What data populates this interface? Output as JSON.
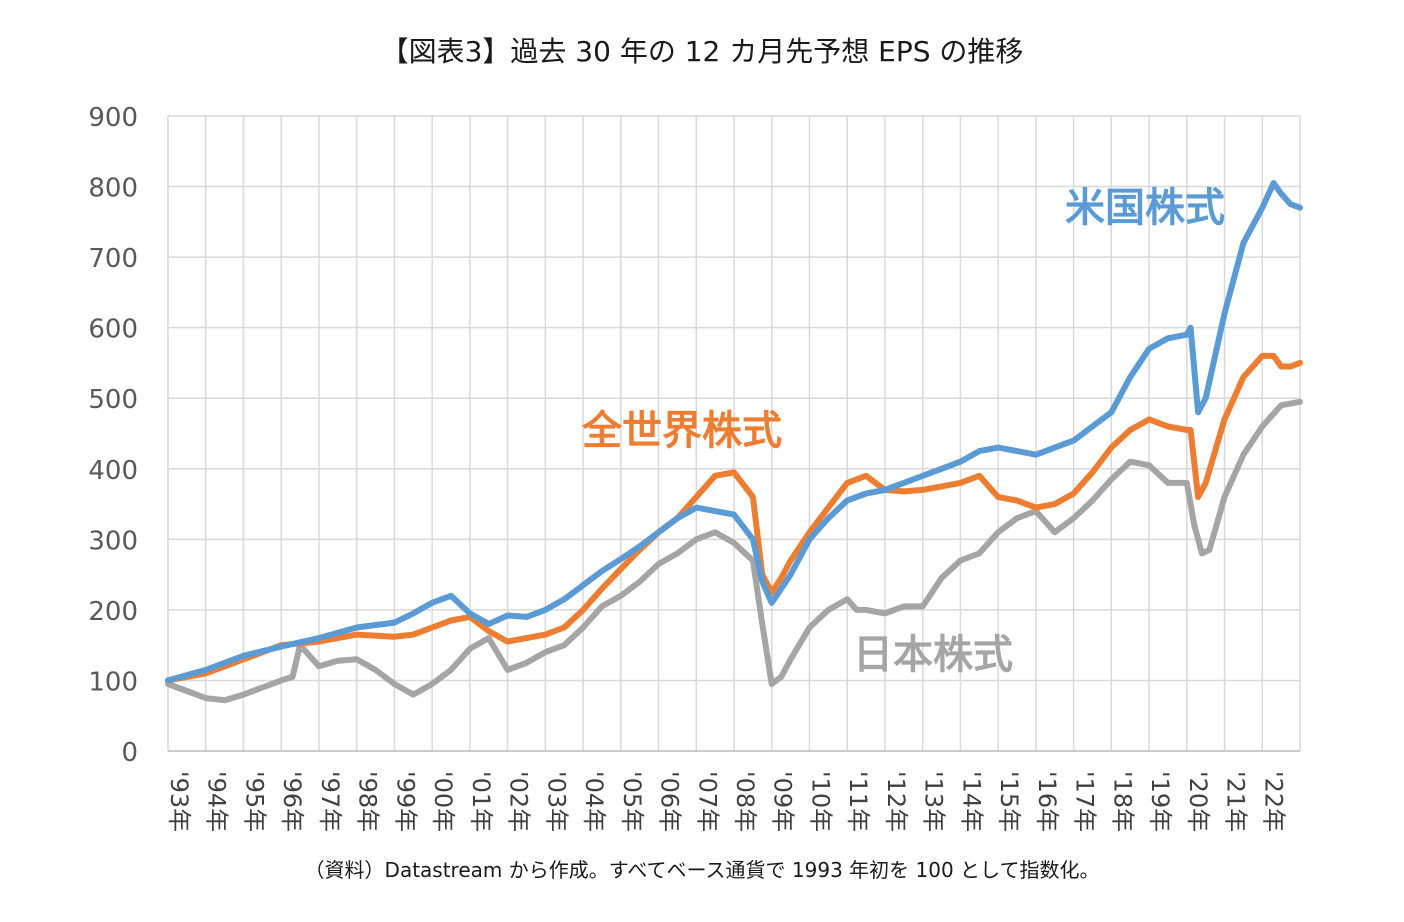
{
  "chart_data": {
    "type": "line",
    "title": "【図表3】過去 30 年の 12 カ月先予想 EPS の推移",
    "footnote": "（資料）Datastream から作成。すべてベース通貨で 1993 年初を 100 として指数化。",
    "ylim": [
      0,
      900
    ],
    "yticks": [
      "0",
      "100",
      "200",
      "300",
      "400",
      "500",
      "600",
      "700",
      "800",
      "900"
    ],
    "xlim": [
      1993,
      2023
    ],
    "categories": [
      "'93年",
      "'94年",
      "'95年",
      "'96年",
      "'97年",
      "'98年",
      "'99年",
      "'00年",
      "'01年",
      "'02年",
      "'03年",
      "'04年",
      "'05年",
      "'06年",
      "'07年",
      "'08年",
      "'09年",
      "'10年",
      "'11年",
      "'12年",
      "'13年",
      "'14年",
      "'15年",
      "'16年",
      "'17年",
      "'18年",
      "'19年",
      "'20年",
      "'21年",
      "'22年"
    ],
    "grid": true,
    "legend": "inline labels",
    "series": [
      {
        "name": "米国株式",
        "color": "#5b9bd5",
        "x": [
          1993.0,
          1994.0,
          1995.0,
          1996.0,
          1997.0,
          1998.0,
          1999.0,
          1999.5,
          2000.0,
          2000.5,
          2001.0,
          2001.5,
          2002.0,
          2002.5,
          2003.0,
          2003.5,
          2004.0,
          2004.5,
          2005.0,
          2005.5,
          2006.0,
          2006.5,
          2007.0,
          2007.5,
          2008.0,
          2008.5,
          2008.75,
          2009.0,
          2009.25,
          2009.5,
          2010.0,
          2010.5,
          2011.0,
          2011.5,
          2012.0,
          2012.5,
          2013.0,
          2013.5,
          2014.0,
          2014.5,
          2015.0,
          2015.5,
          2016.0,
          2016.5,
          2017.0,
          2017.5,
          2018.0,
          2018.5,
          2019.0,
          2019.5,
          2020.0,
          2020.1,
          2020.3,
          2020.5,
          2021.0,
          2021.5,
          2022.0,
          2022.3,
          2022.5,
          2022.75,
          2023.0
        ],
        "values": [
          100,
          115,
          135,
          148,
          160,
          175,
          182,
          195,
          210,
          220,
          195,
          180,
          192,
          190,
          200,
          215,
          235,
          255,
          272,
          290,
          310,
          330,
          345,
          340,
          335,
          300,
          240,
          210,
          230,
          250,
          300,
          330,
          355,
          365,
          370,
          380,
          390,
          400,
          410,
          425,
          430,
          425,
          420,
          430,
          440,
          460,
          480,
          530,
          570,
          585,
          590,
          600,
          480,
          500,
          620,
          720,
          770,
          805,
          790,
          775,
          770
        ]
      },
      {
        "name": "全世界株式",
        "color": "#ed7d31",
        "x": [
          1993.0,
          1994.0,
          1995.0,
          1996.0,
          1997.0,
          1998.0,
          1999.0,
          1999.5,
          2000.0,
          2000.5,
          2001.0,
          2001.5,
          2002.0,
          2002.5,
          2003.0,
          2003.5,
          2004.0,
          2004.5,
          2005.0,
          2005.5,
          2006.0,
          2006.5,
          2007.0,
          2007.5,
          2008.0,
          2008.5,
          2008.75,
          2009.0,
          2009.25,
          2009.5,
          2010.0,
          2010.5,
          2011.0,
          2011.5,
          2012.0,
          2012.5,
          2013.0,
          2013.5,
          2014.0,
          2014.5,
          2015.0,
          2015.5,
          2016.0,
          2016.5,
          2017.0,
          2017.5,
          2018.0,
          2018.5,
          2019.0,
          2019.5,
          2020.0,
          2020.1,
          2020.3,
          2020.5,
          2021.0,
          2021.5,
          2022.0,
          2022.3,
          2022.5,
          2022.75,
          2023.0
        ],
        "values": [
          100,
          110,
          130,
          150,
          155,
          165,
          162,
          165,
          175,
          185,
          190,
          170,
          155,
          160,
          165,
          175,
          200,
          230,
          258,
          285,
          310,
          330,
          360,
          390,
          395,
          360,
          250,
          225,
          245,
          270,
          310,
          345,
          380,
          390,
          370,
          368,
          370,
          375,
          380,
          390,
          360,
          355,
          345,
          350,
          365,
          395,
          430,
          455,
          470,
          460,
          455,
          455,
          360,
          380,
          470,
          530,
          560,
          560,
          545,
          545,
          550
        ]
      },
      {
        "name": "日本株式",
        "color": "#a5a5a5",
        "x": [
          1993.0,
          1993.5,
          1994.0,
          1994.5,
          1995.0,
          1995.5,
          1996.0,
          1996.3,
          1996.5,
          1997.0,
          1997.5,
          1998.0,
          1998.5,
          1999.0,
          1999.5,
          2000.0,
          2000.5,
          2001.0,
          2001.5,
          2002.0,
          2002.5,
          2003.0,
          2003.5,
          2004.0,
          2004.5,
          2005.0,
          2005.5,
          2006.0,
          2006.5,
          2007.0,
          2007.5,
          2008.0,
          2008.5,
          2008.75,
          2009.0,
          2009.25,
          2009.5,
          2010.0,
          2010.5,
          2011.0,
          2011.25,
          2011.5,
          2012.0,
          2012.5,
          2013.0,
          2013.5,
          2014.0,
          2014.5,
          2015.0,
          2015.5,
          2016.0,
          2016.5,
          2017.0,
          2017.5,
          2018.0,
          2018.5,
          2019.0,
          2019.5,
          2020.0,
          2020.2,
          2020.4,
          2020.6,
          2021.0,
          2021.5,
          2022.0,
          2022.5,
          2023.0
        ],
        "values": [
          95,
          85,
          75,
          72,
          80,
          90,
          100,
          105,
          150,
          120,
          128,
          130,
          115,
          95,
          80,
          95,
          115,
          145,
          160,
          115,
          125,
          140,
          150,
          175,
          205,
          220,
          240,
          265,
          280,
          300,
          310,
          295,
          270,
          180,
          95,
          105,
          130,
          175,
          200,
          215,
          200,
          200,
          195,
          205,
          205,
          245,
          270,
          280,
          310,
          330,
          340,
          310,
          330,
          355,
          385,
          410,
          405,
          380,
          380,
          320,
          280,
          285,
          360,
          420,
          460,
          490,
          495
        ]
      }
    ]
  }
}
